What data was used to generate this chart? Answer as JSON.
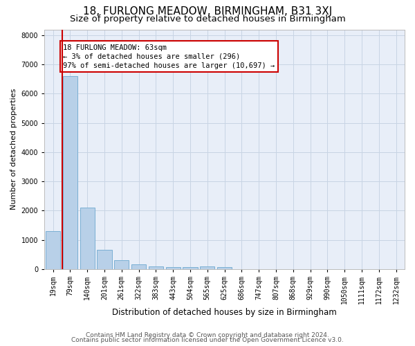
{
  "title": "18, FURLONG MEADOW, BIRMINGHAM, B31 3XJ",
  "subtitle": "Size of property relative to detached houses in Birmingham",
  "xlabel": "Distribution of detached houses by size in Birmingham",
  "ylabel": "Number of detached properties",
  "footer_line1": "Contains HM Land Registry data © Crown copyright and database right 2024.",
  "footer_line2": "Contains public sector information licensed under the Open Government Licence v3.0.",
  "annotation_line1": "18 FURLONG MEADOW: 63sqm",
  "annotation_line2": "← 3% of detached houses are smaller (296)",
  "annotation_line3": "97% of semi-detached houses are larger (10,697) →",
  "bar_labels": [
    "19sqm",
    "79sqm",
    "140sqm",
    "201sqm",
    "261sqm",
    "322sqm",
    "383sqm",
    "443sqm",
    "504sqm",
    "565sqm",
    "625sqm",
    "686sqm",
    "747sqm",
    "807sqm",
    "868sqm",
    "929sqm",
    "990sqm",
    "1050sqm",
    "1111sqm",
    "1172sqm",
    "1232sqm"
  ],
  "bar_heights": [
    1300,
    6600,
    2100,
    650,
    300,
    150,
    100,
    70,
    70,
    80,
    55,
    0,
    0,
    0,
    0,
    0,
    0,
    0,
    0,
    0,
    0
  ],
  "marker_bar_index": 1,
  "bar_color": "#b8d0e8",
  "bar_edge_color": "#7aafd4",
  "marker_line_color": "#cc0000",
  "ylim": [
    0,
    8200
  ],
  "yticks": [
    0,
    1000,
    2000,
    3000,
    4000,
    5000,
    6000,
    7000,
    8000
  ],
  "grid_color": "#c8d4e4",
  "bg_color": "#e8eef8",
  "annotation_box_color": "#cc0000",
  "title_fontsize": 11,
  "subtitle_fontsize": 9.5,
  "axis_label_fontsize": 8,
  "tick_fontsize": 7,
  "footer_fontsize": 6.5,
  "annotation_fontsize": 7.5
}
